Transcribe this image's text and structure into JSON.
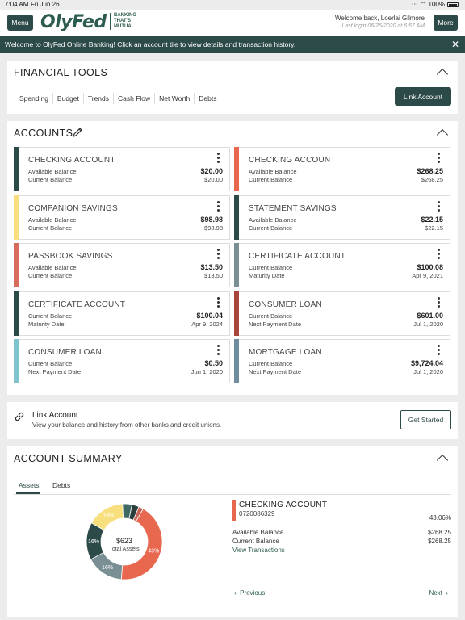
{
  "status_bar": {
    "time": "7:04 AM",
    "date": "Fri Jun 26",
    "battery": "100%"
  },
  "header": {
    "menu_label": "Menu",
    "logo": "OlyFed",
    "tagline": "BANKING THAT'S MUTUAL",
    "welcome": "Welcome back, Loerlai Gilmore",
    "last_login": "Last login 06/26/2020 at 6:57 AM",
    "more_label": "More"
  },
  "banner": {
    "text": "Welcome to OlyFed Online Banking! Click an account tile to view details and transaction history.",
    "close": "✕"
  },
  "financial_tools": {
    "title": "FINANCIAL TOOLS",
    "tabs": [
      "Spending",
      "Budget",
      "Trends",
      "Cash Flow",
      "Net Worth",
      "Debts"
    ],
    "link_button": "Link Account"
  },
  "accounts": {
    "title": "ACCOUNTS",
    "tiles": [
      {
        "name": "CHECKING ACCOUNT",
        "l1": "Available Balance",
        "v1": "$20.00",
        "l2": "Current Balance",
        "v2": "$20.00",
        "color": "#2c4a47"
      },
      {
        "name": "CHECKING ACCOUNT",
        "l1": "Available Balance",
        "v1": "$268.25",
        "l2": "Current Balance",
        "v2": "$268.25",
        "color": "#e8674f"
      },
      {
        "name": "COMPANION SAVINGS",
        "l1": "Available Balance",
        "v1": "$98.98",
        "l2": "Current Balance",
        "v2": "$98.98",
        "color": "#f8df7d"
      },
      {
        "name": "STATEMENT SAVINGS",
        "l1": "Available Balance",
        "v1": "$22.15",
        "l2": "Current Balance",
        "v2": "$22.15",
        "color": "#2c4a47"
      },
      {
        "name": "PASSBOOK SAVINGS",
        "l1": "Available Balance",
        "v1": "$13.50",
        "l2": "Current Balance",
        "v2": "$13.50",
        "color": "#d86c5c"
      },
      {
        "name": "CERTIFICATE ACCOUNT",
        "l1": "Current Balance",
        "v1": "$100.08",
        "l2": "Maturity Date",
        "v2": "Apr 9, 2021",
        "color": "#7a8f93"
      },
      {
        "name": "CERTIFICATE ACCOUNT",
        "l1": "Current Balance",
        "v1": "$100.04",
        "l2": "Maturity Date",
        "v2": "Apr 9, 2024",
        "color": "#2c4a47"
      },
      {
        "name": "CONSUMER LOAN",
        "l1": "Current Balance",
        "v1": "$601.00",
        "l2": "Next Payment Date",
        "v2": "Jul 1, 2020",
        "color": "#a8463c"
      },
      {
        "name": "CONSUMER LOAN",
        "l1": "Current Balance",
        "v1": "$0.50",
        "l2": "Next Payment Date",
        "v2": "Jun 1, 2020",
        "color": "#7fc3cf"
      },
      {
        "name": "MORTGAGE LOAN",
        "l1": "Current Balance",
        "v1": "$9,724.04",
        "l2": "Next Payment Date",
        "v2": "Jul 1, 2020",
        "color": "#6e8ea0"
      }
    ]
  },
  "link_card": {
    "title": "Link Account",
    "subtitle": "View your balance and history from other banks and credit unions.",
    "button": "Get Started"
  },
  "summary": {
    "title": "ACCOUNT SUMMARY",
    "tabs": [
      "Assets",
      "Debts"
    ],
    "total": "$623",
    "total_label": "Total Assets",
    "segments": [
      {
        "pct": 43,
        "label": "43%",
        "color": "#e8674f"
      },
      {
        "pct": 16,
        "label": "16%",
        "color": "#7a8f93"
      },
      {
        "pct": 16,
        "label": "16%",
        "color": "#2c4a47"
      },
      {
        "pct": 16,
        "label": "16%",
        "color": "#f8df7d"
      },
      {
        "pct": 4,
        "label": "",
        "color": "#3f6a63"
      },
      {
        "pct": 3,
        "label": "",
        "color": "#2a3f3c"
      },
      {
        "pct": 2,
        "label": "",
        "color": "#c96558"
      }
    ],
    "detail": {
      "name": "CHECKING ACCOUNT",
      "number": "0720086329",
      "percent": "43.06%",
      "available_label": "Available Balance",
      "available_value": "$268.25",
      "current_label": "Current Balance",
      "current_value": "$268.25",
      "view_link": "View Transactions"
    },
    "previous": "Previous",
    "next": "Next"
  }
}
